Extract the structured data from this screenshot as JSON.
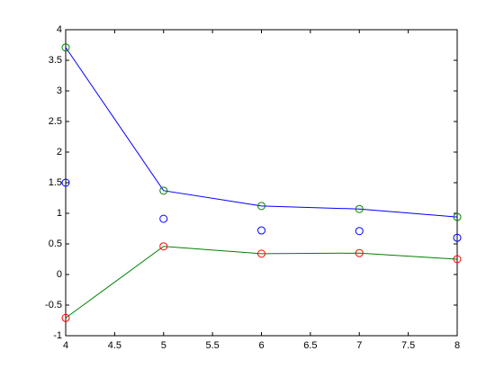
{
  "chart_data": {
    "type": "line",
    "x": [
      4,
      5,
      6,
      7,
      8
    ],
    "series": [
      {
        "line_color": "#0000ff",
        "marker_color": "#008000",
        "values": [
          3.71,
          1.37,
          1.12,
          1.07,
          0.94
        ]
      },
      {
        "line_color": null,
        "marker_color": "#0000ff",
        "values": [
          1.5,
          0.91,
          0.72,
          0.71,
          0.6
        ]
      },
      {
        "line_color": "#008000",
        "marker_color": "#ff0000",
        "values": [
          -0.71,
          0.46,
          0.34,
          0.35,
          0.25
        ]
      }
    ],
    "xlim": [
      4,
      8
    ],
    "xticks": [
      4,
      4.5,
      5,
      5.5,
      6,
      6.5,
      7,
      7.5,
      8
    ],
    "ylim": [
      -1,
      4
    ],
    "yticks": [
      -1,
      -0.5,
      0,
      0.5,
      1,
      1.5,
      2,
      2.5,
      3,
      3.5,
      4
    ],
    "grid": false
  }
}
